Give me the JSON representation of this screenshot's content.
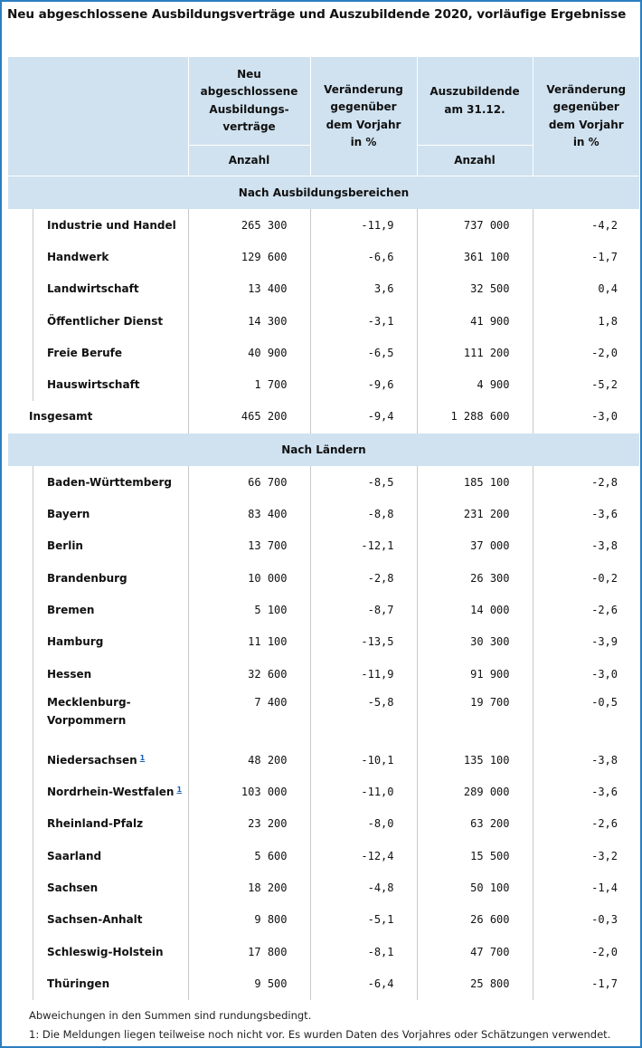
{
  "title": "Neu abgeschlossene Ausbildungsverträge und Auszubildende 2020, vorläufige Ergebnisse",
  "header": {
    "col_contracts": "Neu abgeschlossene Ausbildungs-verträge",
    "col_contracts_change": "Veränderung gegenüber dem Vorjahr in %",
    "col_trainees": "Auszubildende am 31.12.",
    "col_trainees_change": "Veränderung gegenüber dem Vorjahr in %",
    "unit_contracts": "Anzahl",
    "unit_trainees": "Anzahl"
  },
  "section_areas": "Nach Ausbildungsbereichen",
  "areas": [
    {
      "name": "Industrie und Handel",
      "contracts": "265 300",
      "contracts_change": "-11,9",
      "trainees": "737 000",
      "trainees_change": "-4,2"
    },
    {
      "name": "Handwerk",
      "contracts": "129 600",
      "contracts_change": "-6,6",
      "trainees": "361 100",
      "trainees_change": "-1,7"
    },
    {
      "name": "Landwirtschaft",
      "contracts": "13 400",
      "contracts_change": "3,6",
      "trainees": "32 500",
      "trainees_change": "0,4"
    },
    {
      "name": "Öffentlicher Dienst",
      "contracts": "14 300",
      "contracts_change": "-3,1",
      "trainees": "41 900",
      "trainees_change": "1,8"
    },
    {
      "name": "Freie Berufe",
      "contracts": "40 900",
      "contracts_change": "-6,5",
      "trainees": "111 200",
      "trainees_change": "-2,0"
    },
    {
      "name": "Hauswirtschaft",
      "contracts": "1 700",
      "contracts_change": "-9,6",
      "trainees": "4 900",
      "trainees_change": "-5,2"
    }
  ],
  "total": {
    "name": "Insgesamt",
    "contracts": "465 200",
    "contracts_change": "-9,4",
    "trainees": "1 288 600",
    "trainees_change": "-3,0"
  },
  "section_states": "Nach Ländern",
  "states": [
    {
      "name": "Baden-Württemberg",
      "contracts": "66 700",
      "contracts_change": "-8,5",
      "trainees": "185 100",
      "trainees_change": "-2,8"
    },
    {
      "name": "Bayern",
      "contracts": "83 400",
      "contracts_change": "-8,8",
      "trainees": "231 200",
      "trainees_change": "-3,6"
    },
    {
      "name": "Berlin",
      "contracts": "13 700",
      "contracts_change": "-12,1",
      "trainees": "37 000",
      "trainees_change": "-3,8"
    },
    {
      "name": "Brandenburg",
      "contracts": "10 000",
      "contracts_change": "-2,8",
      "trainees": "26 300",
      "trainees_change": "-0,2"
    },
    {
      "name": "Bremen",
      "contracts": "5 100",
      "contracts_change": "-8,7",
      "trainees": "14 000",
      "trainees_change": "-2,6"
    },
    {
      "name": "Hamburg",
      "contracts": "11 100",
      "contracts_change": "-13,5",
      "trainees": "30 300",
      "trainees_change": "-3,9"
    },
    {
      "name": "Hessen",
      "contracts": "32 600",
      "contracts_change": "-11,9",
      "trainees": "91 900",
      "trainees_change": "-3,0"
    },
    {
      "name": "Mecklenburg-Vorpommern",
      "contracts": "7 400",
      "contracts_change": "-5,8",
      "trainees": "19 700",
      "trainees_change": "-0,5"
    },
    {
      "name": "Niedersachsen",
      "footnote": "1",
      "contracts": "48 200",
      "contracts_change": "-10,1",
      "trainees": "135 100",
      "trainees_change": "-3,8"
    },
    {
      "name": "Nordrhein-Westfalen",
      "footnote": "1",
      "contracts": "103 000",
      "contracts_change": "-11,0",
      "trainees": "289 000",
      "trainees_change": "-3,6"
    },
    {
      "name": "Rheinland-Pfalz",
      "contracts": "23 200",
      "contracts_change": "-8,0",
      "trainees": "63 200",
      "trainees_change": "-2,6"
    },
    {
      "name": "Saarland",
      "contracts": "5 600",
      "contracts_change": "-12,4",
      "trainees": "15 500",
      "trainees_change": "-3,2"
    },
    {
      "name": "Sachsen",
      "contracts": "18 200",
      "contracts_change": "-4,8",
      "trainees": "50 100",
      "trainees_change": "-1,4"
    },
    {
      "name": "Sachsen-Anhalt",
      "contracts": "9 800",
      "contracts_change": "-5,1",
      "trainees": "26 600",
      "trainees_change": "-0,3"
    },
    {
      "name": "Schleswig-Holstein",
      "contracts": "17 800",
      "contracts_change": "-8,1",
      "trainees": "47 700",
      "trainees_change": "-2,0"
    },
    {
      "name": "Thüringen",
      "contracts": "9 500",
      "contracts_change": "-6,4",
      "trainees": "25 800",
      "trainees_change": "-1,7"
    }
  ],
  "notes": [
    "Abweichungen in den Summen sind rundungsbedingt.",
    "1: Die Meldungen liegen teilweise noch nicht vor. Es wurden Daten des Vorjahres oder Schätzungen verwendet."
  ]
}
